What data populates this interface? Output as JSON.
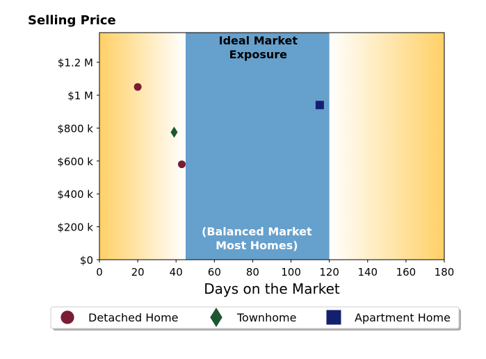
{
  "chart_data": {
    "type": "scatter",
    "title": "Selling Price",
    "xlabel": "Days on the Market",
    "ylabel": "",
    "xlim": [
      0,
      180
    ],
    "ylim": [
      0,
      1380000
    ],
    "x_ticks": [
      0,
      20,
      40,
      60,
      80,
      100,
      120,
      140,
      160,
      180
    ],
    "x_tick_labels": [
      "0",
      "20",
      "40",
      "60",
      "80",
      "100",
      "120",
      "140",
      "160",
      "180"
    ],
    "y_ticks": [
      0,
      200000,
      400000,
      600000,
      800000,
      1000000,
      1200000
    ],
    "y_tick_labels": [
      "$0",
      "$200 k",
      "$400 k",
      "$600 k",
      "$800 k",
      "$1 M",
      "$1.2 M"
    ],
    "grid": false,
    "legend_position": "bottom",
    "ideal_band": {
      "x_range": [
        45,
        120
      ],
      "label_top": "Ideal Market\nExposure",
      "label_bottom": "(Balanced Market\nMost Homes)",
      "color": "#66a0cc"
    },
    "gradient_color": "#ffd066",
    "series": [
      {
        "name": "Detached Home",
        "marker": "circle",
        "color": "#7a1c34",
        "points": [
          {
            "x": 20,
            "y": 1050000
          },
          {
            "x": 43,
            "y": 580000
          }
        ]
      },
      {
        "name": "Townhome",
        "marker": "diamond",
        "color": "#1e5631",
        "points": [
          {
            "x": 39,
            "y": 775000
          }
        ]
      },
      {
        "name": "Apartment Home",
        "marker": "square",
        "color": "#14206e",
        "points": [
          {
            "x": 115,
            "y": 940000
          }
        ]
      }
    ]
  }
}
